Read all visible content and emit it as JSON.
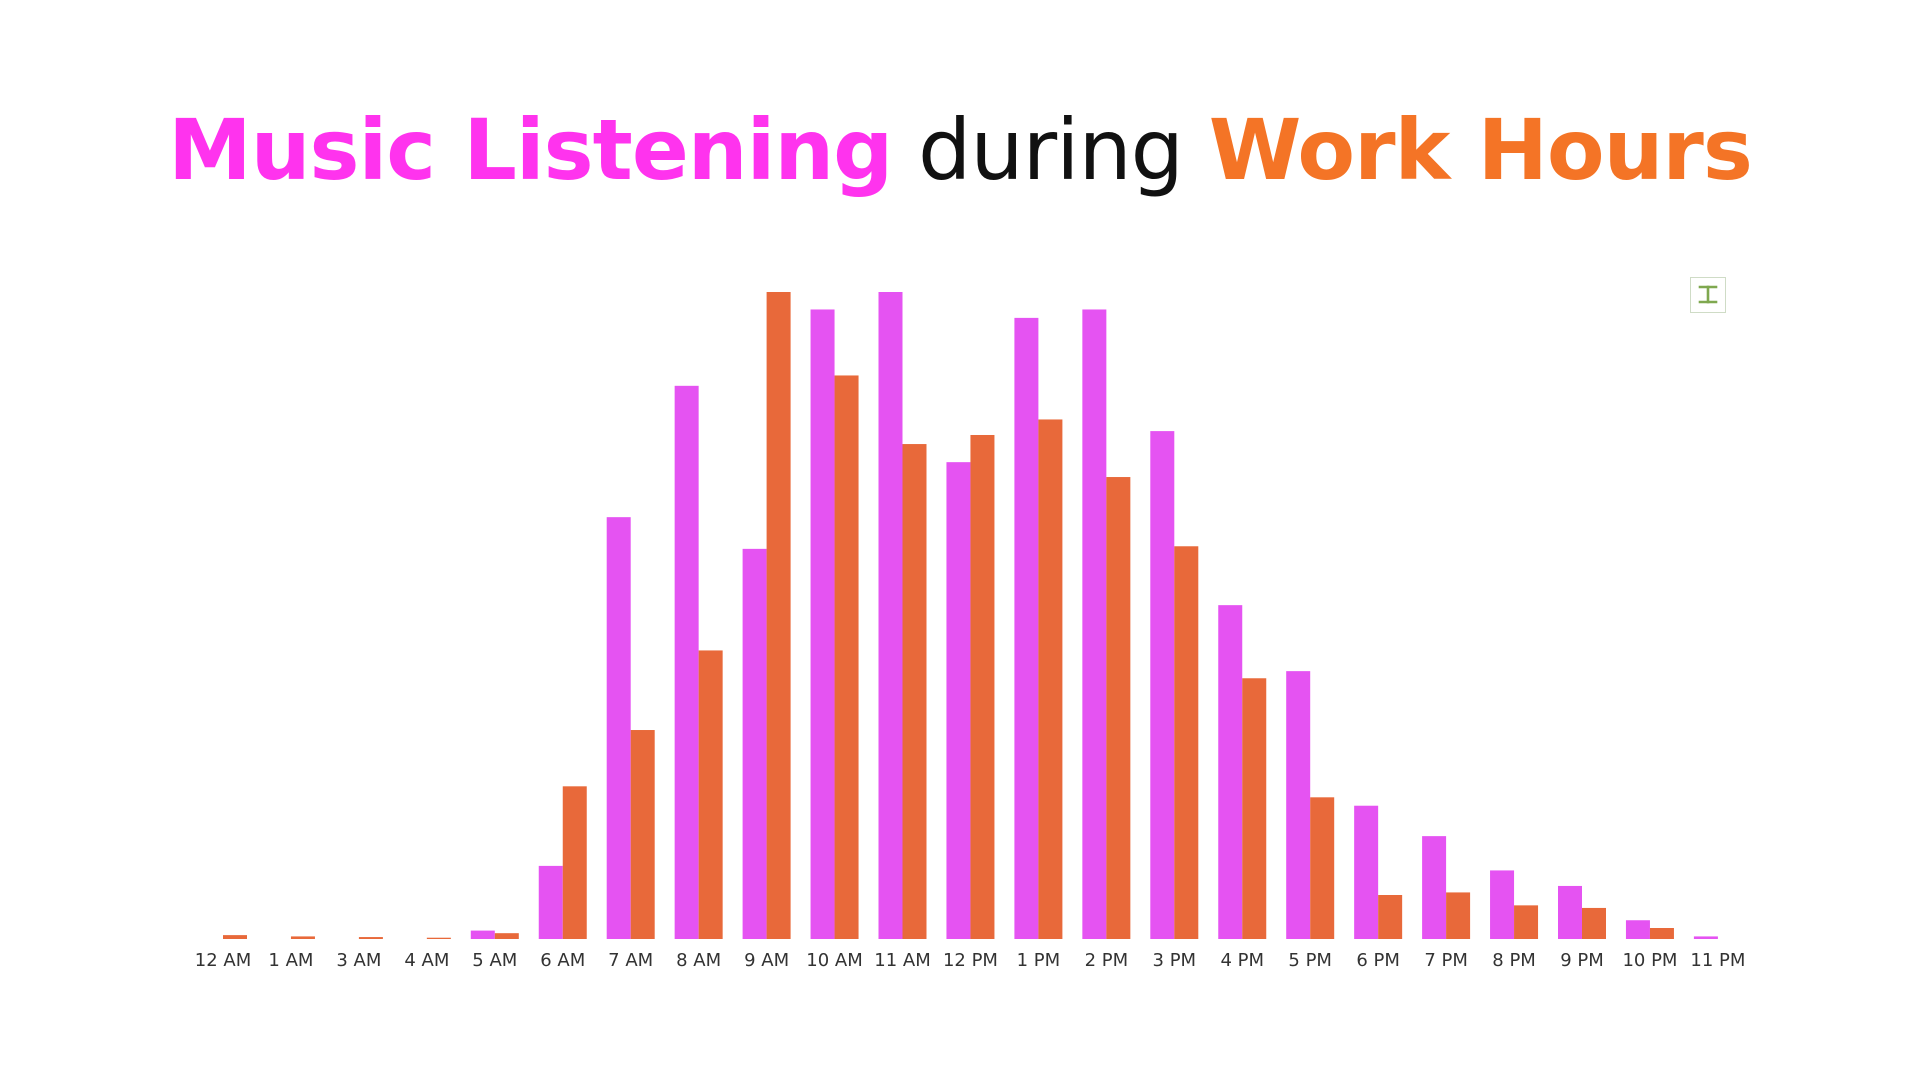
{
  "title": {
    "part1": "Music Listening",
    "part2": "during",
    "part3": "Work Hours",
    "colors": {
      "part1": "#ff33ee",
      "part2": "#111111",
      "part3": "#f47426"
    }
  },
  "toolbar": {
    "icon": "text-cursor-icon",
    "color": "#7fa84f"
  },
  "chart_data": {
    "type": "bar",
    "title": "Music Listening during Work Hours",
    "xlabel": "",
    "ylabel": "",
    "ylim": [
      0,
      100
    ],
    "grid": false,
    "legend": "none",
    "categories": [
      "12 AM",
      "1 AM",
      "3 AM",
      "4 AM",
      "5 AM",
      "6 AM",
      "7 AM",
      "8 AM",
      "9 AM",
      "10 AM",
      "11 AM",
      "12 PM",
      "1 PM",
      "2 PM",
      "3 PM",
      "4 PM",
      "5 PM",
      "6 PM",
      "7 PM",
      "8 PM",
      "9 PM",
      "10 PM",
      "11 PM"
    ],
    "series": [
      {
        "color": "#e553f2",
        "values": [
          0,
          0,
          0,
          0,
          1.3,
          11.3,
          65.2,
          85.5,
          60.3,
          97.3,
          100,
          73.7,
          96,
          97.3,
          78.5,
          51.6,
          41.4,
          20.6,
          15.9,
          10.6,
          8.2,
          2.9,
          0.4
        ]
      },
      {
        "color": "#e8693a",
        "values": [
          0.6,
          0.4,
          0.3,
          0.2,
          0.9,
          23.6,
          32.3,
          44.6,
          100,
          87.1,
          76.5,
          77.9,
          80.3,
          71.4,
          60.7,
          40.3,
          21.9,
          6.8,
          7.2,
          5.2,
          4.8,
          1.7,
          0
        ]
      }
    ]
  }
}
